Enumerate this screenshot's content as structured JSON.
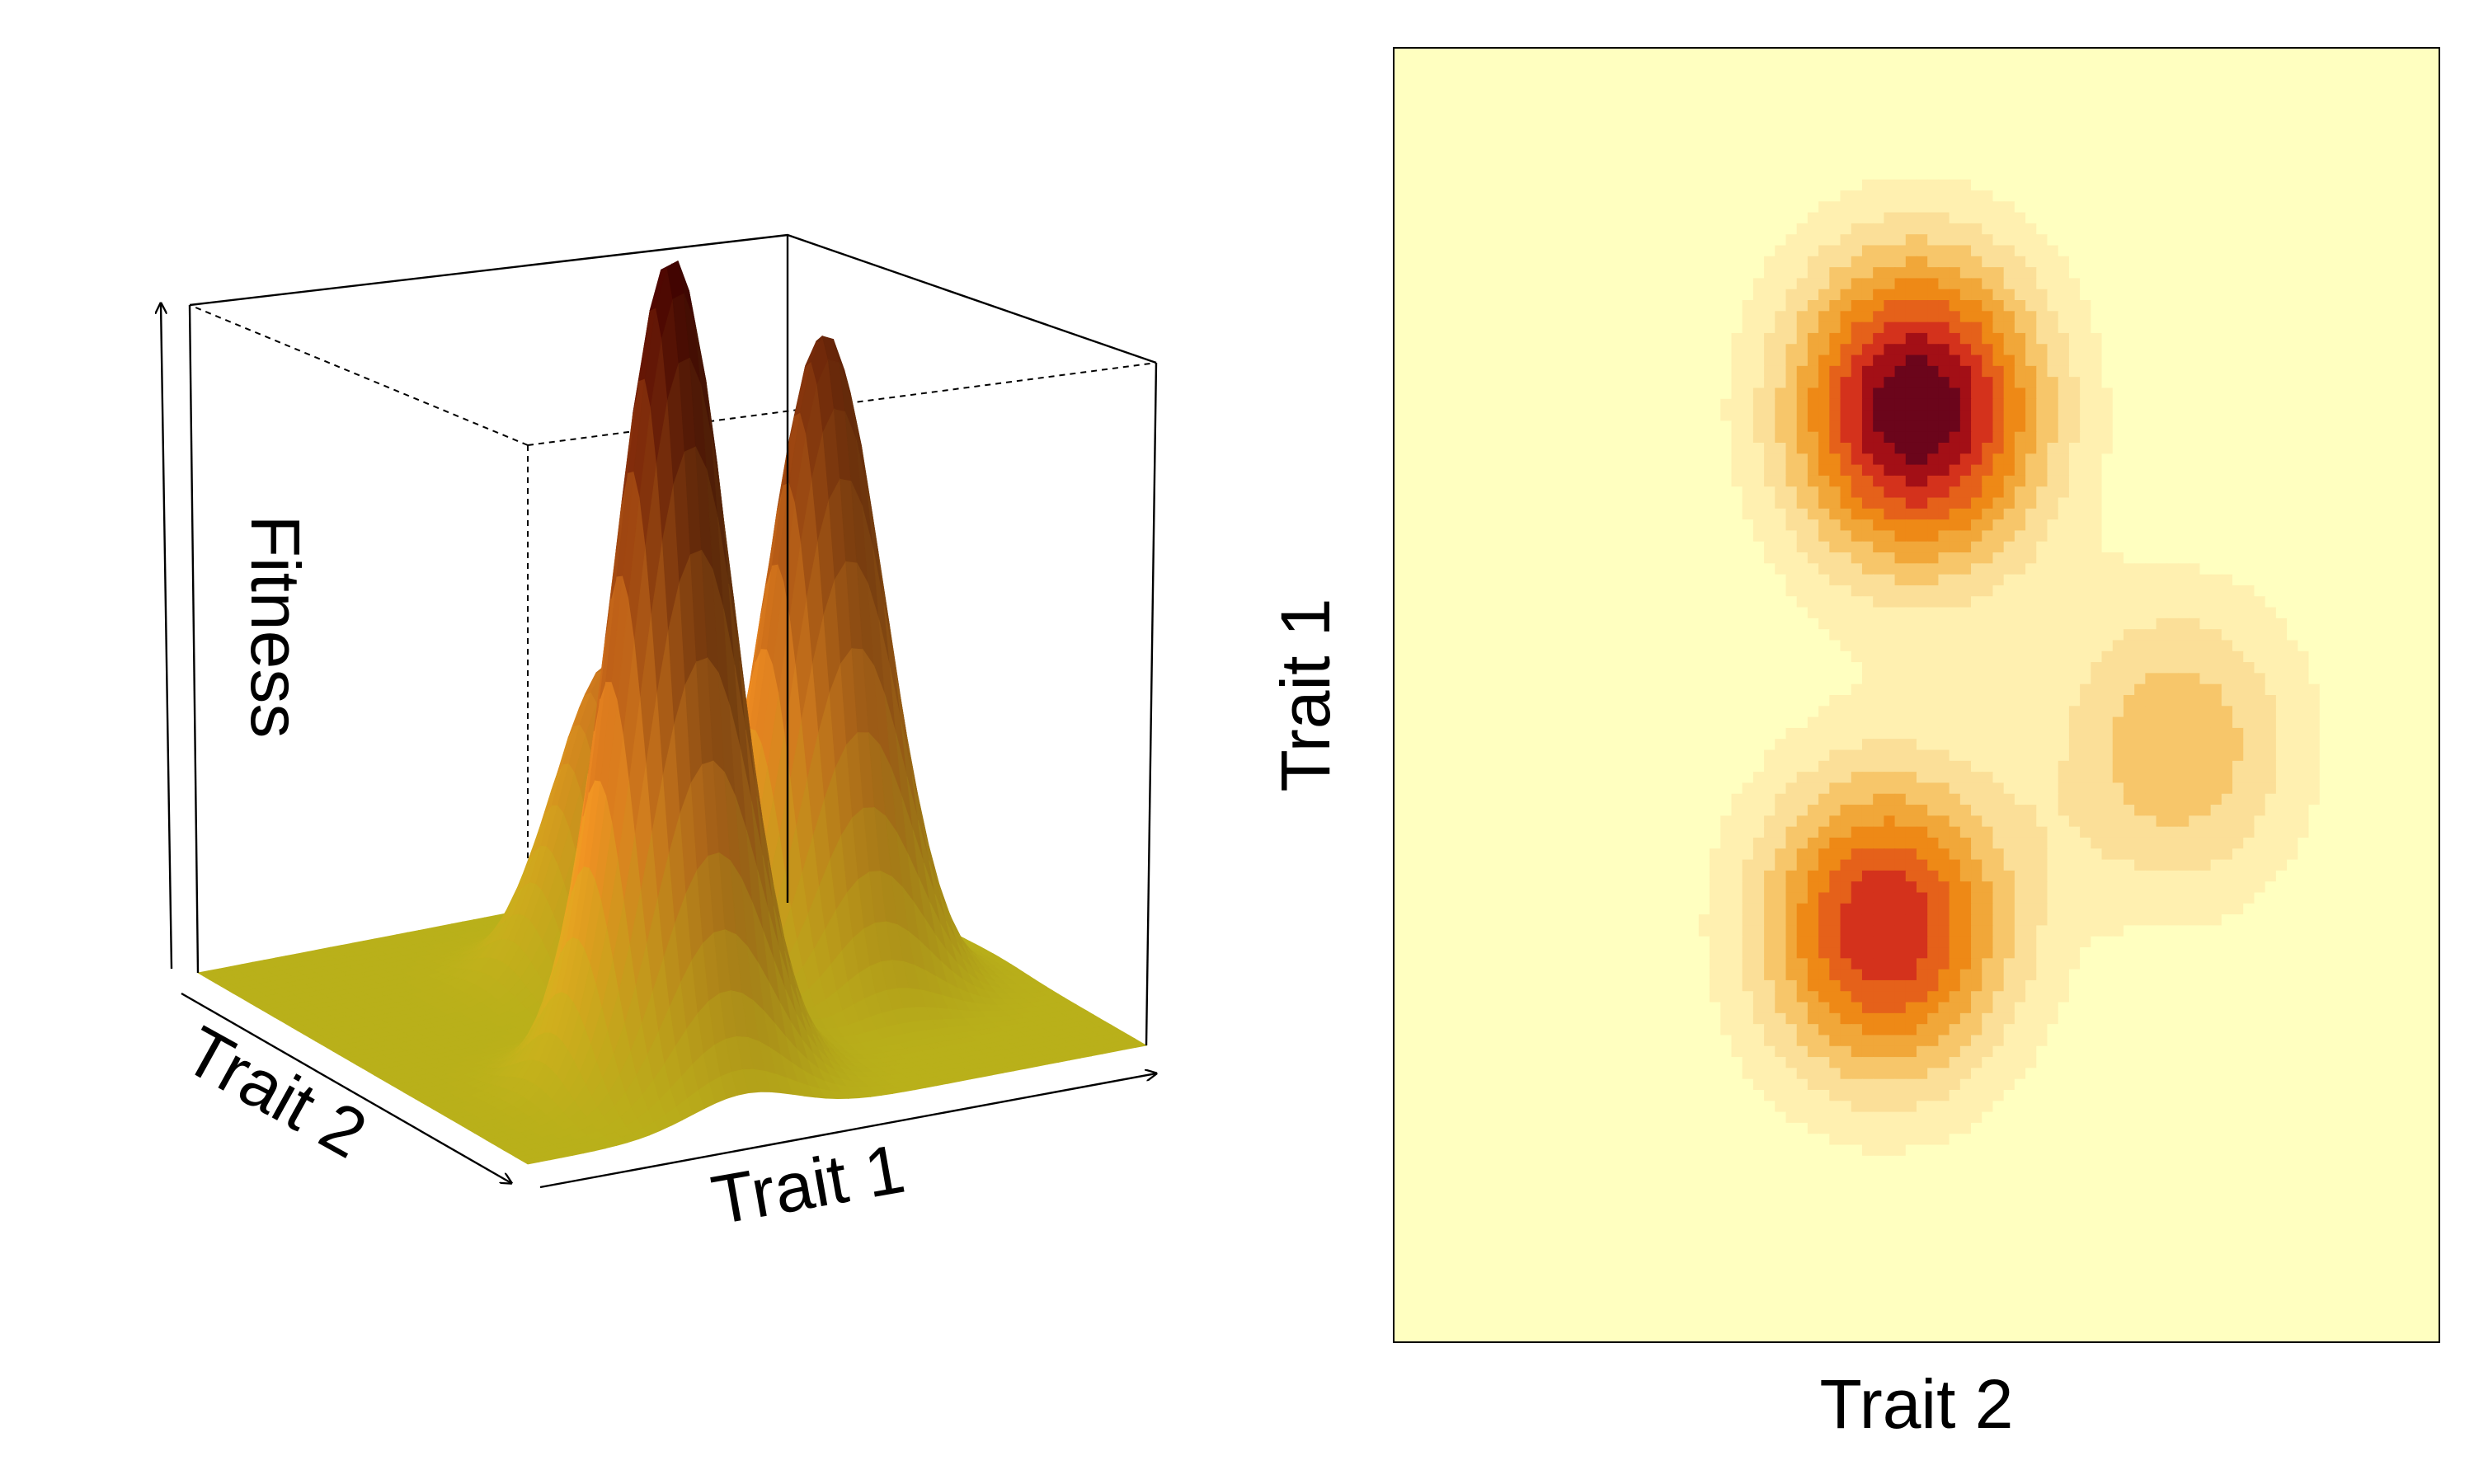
{
  "chart_data": [
    {
      "type": "surface",
      "title": "",
      "xlabel": "Trait 1",
      "ylabel": "Trait 2",
      "zlabel": "Fitness",
      "xlim": [
        0,
        1
      ],
      "ylim": [
        0,
        1
      ],
      "zlim": [
        0,
        1
      ],
      "peaks": [
        {
          "trait1": 0.35,
          "trait2": 0.22,
          "fitness": 1.0
        },
        {
          "trait1": 0.72,
          "trait2": 0.45,
          "fitness": 0.8
        },
        {
          "trait1": 0.5,
          "trait2": 0.68,
          "fitness": 0.38
        }
      ],
      "colors": {
        "base": "#b9b01a",
        "mid": "#c3731c",
        "high": "#400000"
      }
    },
    {
      "type": "heatmap",
      "title": "",
      "xlabel": "Trait 2",
      "ylabel": "Trait 1",
      "xlim": [
        0,
        1
      ],
      "ylim": [
        0,
        1
      ],
      "peaks": [
        {
          "trait2": 0.5,
          "trait1": 0.28,
          "fitness": 1.0
        },
        {
          "trait2": 0.47,
          "trait1": 0.68,
          "fitness": 0.8
        },
        {
          "trait2": 0.75,
          "trait1": 0.54,
          "fitness": 0.38
        }
      ],
      "palette": [
        "#ffffc0",
        "#fff0b0",
        "#fbdf98",
        "#f7c66a",
        "#f1a739",
        "#ee8916",
        "#e5611a",
        "#d4321c",
        "#a30f16",
        "#6b051b"
      ]
    }
  ]
}
